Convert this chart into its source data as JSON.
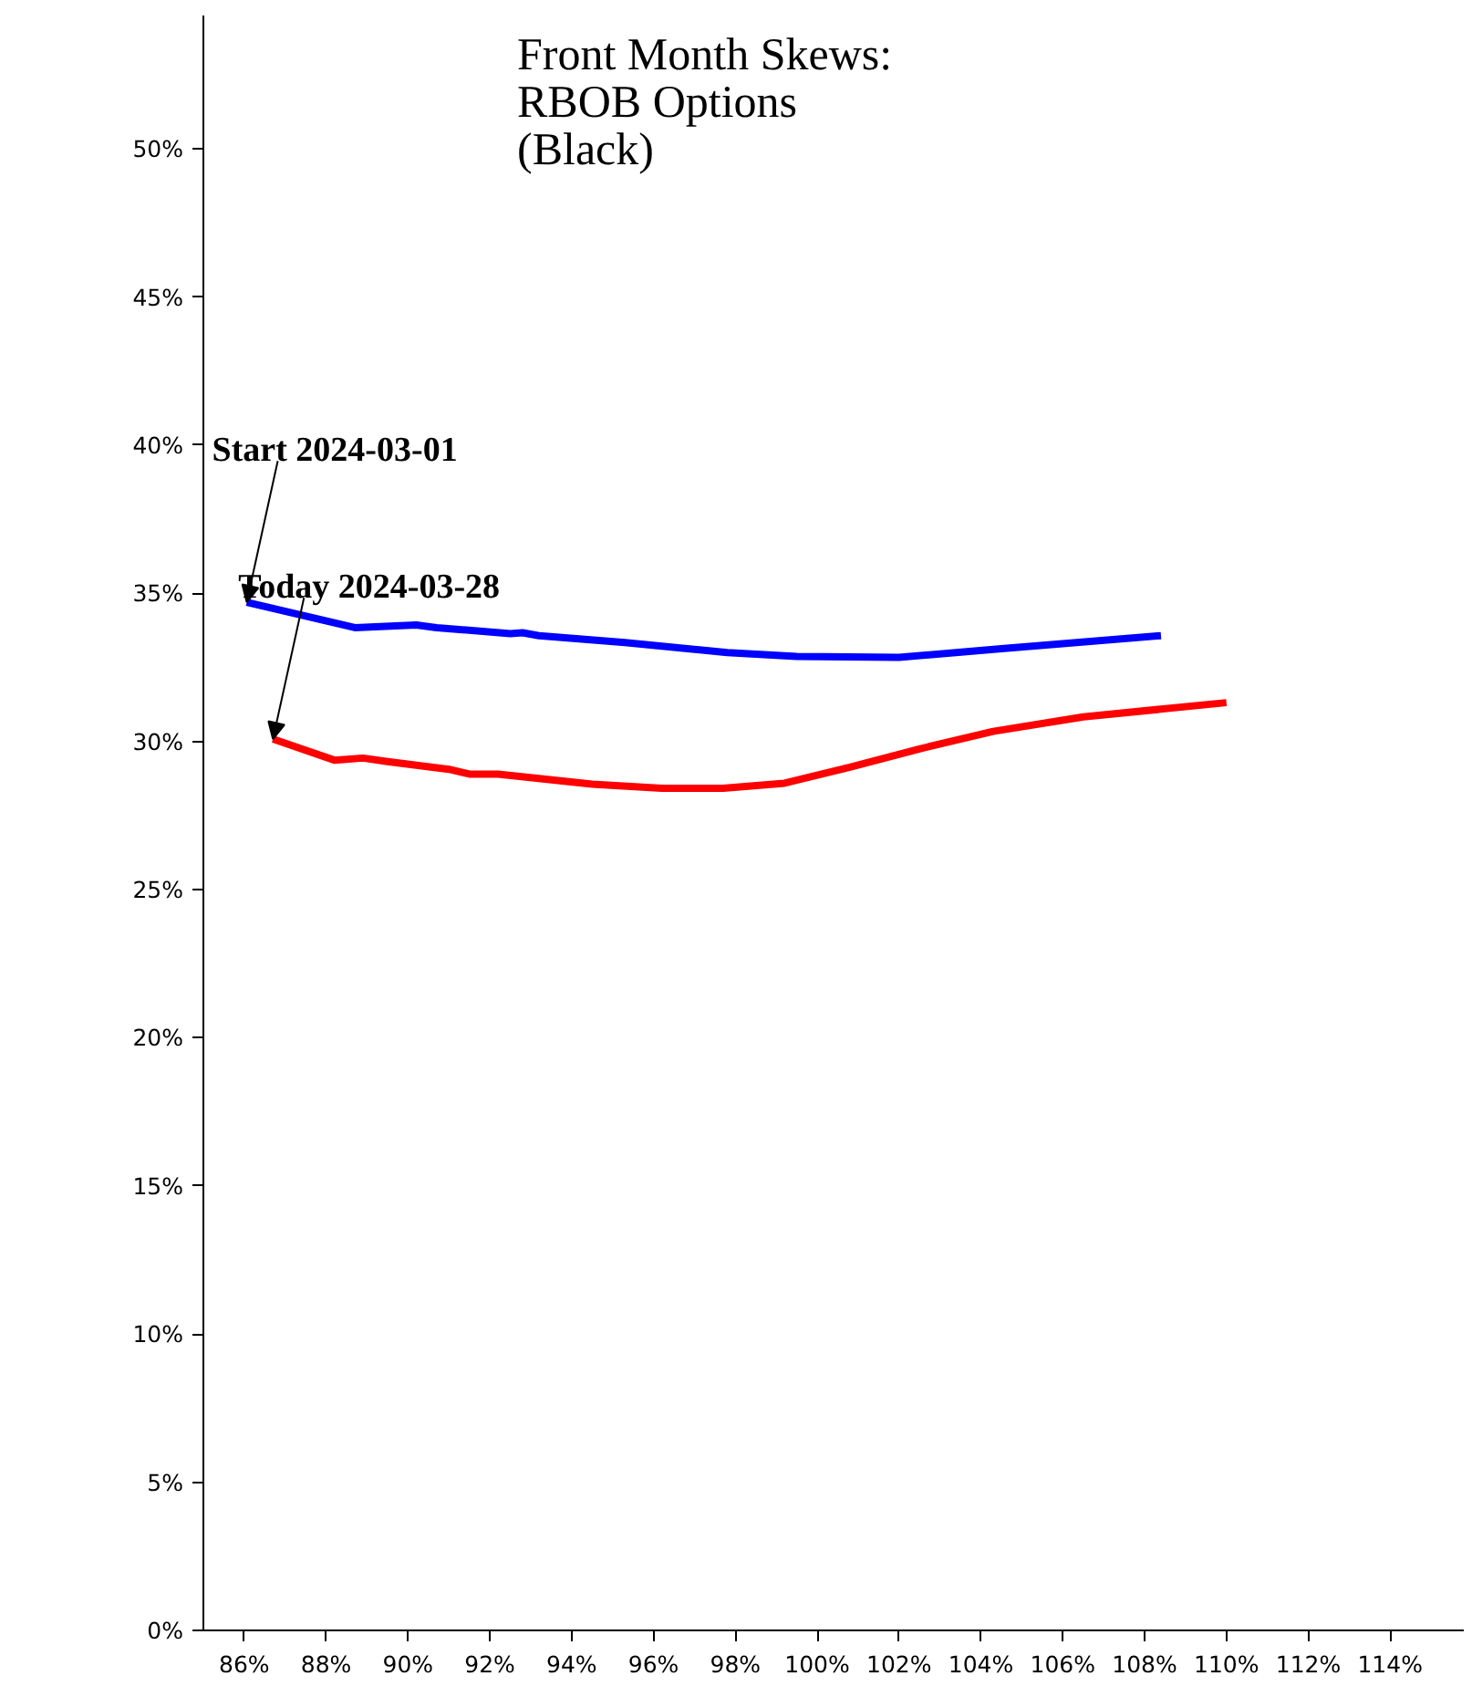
{
  "chart_data": {
    "type": "line",
    "title": "Front Month Skews:\nRBOB Options\n(Black)",
    "x": [
      86.06,
      88.7,
      90.2,
      90.7,
      92.5,
      92.8,
      93.2,
      95.3,
      97.8,
      99.5,
      102.0,
      104.5,
      108.4
    ],
    "series": [
      {
        "color": "#0000ff",
        "values": [
          34.7,
          33.84,
          33.93,
          33.84,
          33.64,
          33.67,
          33.57,
          33.34,
          33.0,
          32.87,
          32.84,
          33.13,
          33.57
        ]
      },
      {
        "color": "#ff0000",
        "x": [
          86.7,
          88.2,
          88.9,
          89.5,
          91.0,
          91.5,
          92.2,
          94.5,
          96.2,
          97.7,
          99.2,
          100.8,
          102.5,
          104.3,
          106.5,
          110.0
        ],
        "values": [
          30.08,
          29.37,
          29.44,
          29.32,
          29.06,
          28.9,
          28.9,
          28.56,
          28.42,
          28.42,
          28.59,
          29.13,
          29.75,
          30.34,
          30.83,
          31.31
        ]
      }
    ],
    "annotations": [
      {
        "text": "Start 2024-03-01",
        "x": 86.06,
        "y": 34.7
      },
      {
        "text": "Today 2024-03-28",
        "x": 86.7,
        "y": 30.08
      }
    ],
    "xlim": [
      85,
      115.8
    ],
    "ylim": [
      0,
      54.5
    ],
    "xticks": [
      {
        "value": 86,
        "label": "86%"
      },
      {
        "value": 88,
        "label": "88%"
      },
      {
        "value": 90,
        "label": "90%"
      },
      {
        "value": 92,
        "label": "92%"
      },
      {
        "value": 94,
        "label": "94%"
      },
      {
        "value": 96,
        "label": "96%"
      },
      {
        "value": 98,
        "label": "98%"
      },
      {
        "value": 100,
        "label": "100%"
      },
      {
        "value": 102,
        "label": "102%"
      },
      {
        "value": 104,
        "label": "104%"
      },
      {
        "value": 106,
        "label": "106%"
      },
      {
        "value": 108,
        "label": "108%"
      },
      {
        "value": 110,
        "label": "110%"
      },
      {
        "value": 112,
        "label": "112%"
      },
      {
        "value": 114,
        "label": "114%"
      }
    ],
    "yticks": [
      {
        "value": 0,
        "label": "0%"
      },
      {
        "value": 5,
        "label": "5%"
      },
      {
        "value": 10,
        "label": "10%"
      },
      {
        "value": 15,
        "label": "15%"
      },
      {
        "value": 20,
        "label": "20%"
      },
      {
        "value": 25,
        "label": "25%"
      },
      {
        "value": 30,
        "label": "30%"
      },
      {
        "value": 35,
        "label": "35%"
      },
      {
        "value": 40,
        "label": "40%"
      },
      {
        "value": 45,
        "label": "45%"
      },
      {
        "value": 50,
        "label": "50%"
      }
    ],
    "grid": false,
    "marker": "none",
    "line_style": "solid"
  }
}
